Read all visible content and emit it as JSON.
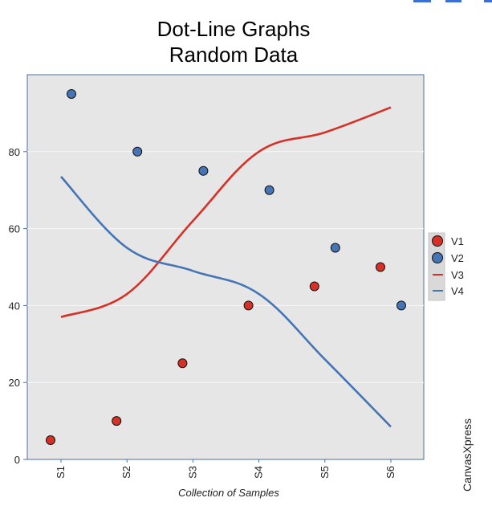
{
  "toolbar": {
    "icons": [
      "toolbar-icon",
      "toolbar-icon",
      "toolbar-icon"
    ]
  },
  "brand": "CanvasXpress",
  "colors": {
    "v1": "#d73027",
    "v2": "#4575b4",
    "v3": "#d73027",
    "v4": "#4575b4",
    "plot_bg": "#e6e6e6",
    "frame": "#4a6fa5"
  },
  "chart_data": {
    "type": "line",
    "title": "Dot-Line Graphs",
    "subtitle": "Random Data",
    "xlabel": "Collection of Samples",
    "ylabel": "",
    "categories": [
      "S1",
      "S2",
      "S3",
      "S4",
      "S5",
      "S6"
    ],
    "ylim": [
      0,
      100
    ],
    "yticks": [
      0,
      20,
      40,
      60,
      80
    ],
    "grid": true,
    "legend_position": "right",
    "series": [
      {
        "name": "V1",
        "kind": "dot",
        "values": [
          5,
          10,
          25,
          40,
          45,
          50
        ]
      },
      {
        "name": "V2",
        "kind": "dot",
        "values": [
          95,
          80,
          75,
          70,
          55,
          40
        ]
      },
      {
        "name": "V3",
        "kind": "line",
        "values": [
          37,
          43,
          62,
          80,
          85,
          91.5
        ]
      },
      {
        "name": "V4",
        "kind": "line",
        "values": [
          73.5,
          55,
          49,
          43,
          26,
          8.5
        ]
      }
    ]
  }
}
